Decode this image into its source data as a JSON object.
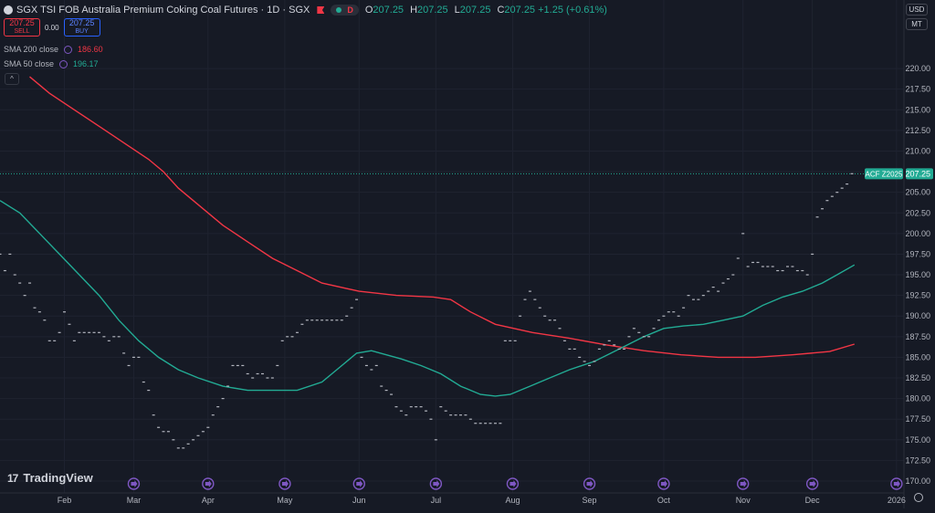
{
  "header": {
    "title": "SGX TSI FOB Australia Premium Coking Coal Futures · 1D · SGX",
    "interval_badge": "D",
    "ohlc": [
      {
        "k": "O",
        "v": "207.25"
      },
      {
        "k": "H",
        "v": "207.25"
      },
      {
        "k": "L",
        "v": "207.25"
      },
      {
        "k": "C",
        "v": "207.25 +1.25 (+0.61%)"
      }
    ]
  },
  "trade": {
    "sell_price": "207.25",
    "sell_label": "SELL",
    "spread": "0.00",
    "buy_price": "207.25",
    "buy_label": "BUY"
  },
  "indicators": [
    {
      "label": "SMA 200 close",
      "value": "186.60",
      "color": "#f23645"
    },
    {
      "label": "SMA 50 close",
      "value": "196.17",
      "color": "#22ab94"
    }
  ],
  "collapse_glyph": "^",
  "units": {
    "currency": "USD",
    "unit": "MT"
  },
  "logo_mark": "17",
  "logo_text": "TradingView",
  "chart_data": {
    "type": "line",
    "x_domain": [
      0,
      365
    ],
    "ylim": [
      170,
      222
    ],
    "y_ticks": [
      "170.00",
      "172.50",
      "175.00",
      "177.50",
      "180.00",
      "182.50",
      "185.00",
      "187.50",
      "190.00",
      "192.50",
      "195.00",
      "197.50",
      "200.00",
      "202.50",
      "205.00",
      "207.50",
      "210.00",
      "212.50",
      "215.00",
      "217.50",
      "220.00"
    ],
    "x_labels": [
      {
        "t": 26,
        "label": "Feb"
      },
      {
        "t": 54,
        "label": "Mar"
      },
      {
        "t": 84,
        "label": "Apr"
      },
      {
        "t": 115,
        "label": "May"
      },
      {
        "t": 145,
        "label": "Jun"
      },
      {
        "t": 176,
        "label": "Jul"
      },
      {
        "t": 207,
        "label": "Aug"
      },
      {
        "t": 238,
        "label": "Sep"
      },
      {
        "t": 268,
        "label": "Oct"
      },
      {
        "t": 300,
        "label": "Nov"
      },
      {
        "t": 328,
        "label": "Dec"
      },
      {
        "t": 362,
        "label": "2026"
      }
    ],
    "last_price": {
      "value": 207.25,
      "label": "207.25",
      "tag": "ACF Z2025"
    },
    "price_points": [
      [
        0,
        197.5
      ],
      [
        2,
        195.5
      ],
      [
        4,
        197.5
      ],
      [
        6,
        195
      ],
      [
        8,
        194
      ],
      [
        10,
        192.5
      ],
      [
        12,
        194
      ],
      [
        14,
        191
      ],
      [
        16,
        190.5
      ],
      [
        18,
        189.5
      ],
      [
        20,
        187
      ],
      [
        22,
        187
      ],
      [
        24,
        188
      ],
      [
        26,
        190.5
      ],
      [
        28,
        189
      ],
      [
        30,
        187
      ],
      [
        32,
        188
      ],
      [
        34,
        188
      ],
      [
        36,
        188
      ],
      [
        38,
        188
      ],
      [
        40,
        188
      ],
      [
        42,
        187.5
      ],
      [
        44,
        187
      ],
      [
        46,
        187.5
      ],
      [
        48,
        187.5
      ],
      [
        50,
        185.5
      ],
      [
        52,
        184
      ],
      [
        54,
        185
      ],
      [
        56,
        185
      ],
      [
        58,
        182
      ],
      [
        60,
        181
      ],
      [
        62,
        178
      ],
      [
        64,
        176.5
      ],
      [
        66,
        176
      ],
      [
        68,
        176
      ],
      [
        70,
        175
      ],
      [
        72,
        174
      ],
      [
        74,
        174
      ],
      [
        76,
        174.5
      ],
      [
        78,
        175
      ],
      [
        80,
        175.5
      ],
      [
        82,
        176
      ],
      [
        84,
        176.5
      ],
      [
        86,
        178
      ],
      [
        88,
        179
      ],
      [
        90,
        180
      ],
      [
        92,
        181.5
      ],
      [
        94,
        184
      ],
      [
        96,
        184
      ],
      [
        98,
        184
      ],
      [
        100,
        183
      ],
      [
        102,
        182.5
      ],
      [
        104,
        183
      ],
      [
        106,
        183
      ],
      [
        108,
        182.5
      ],
      [
        110,
        182.5
      ],
      [
        112,
        184
      ],
      [
        114,
        187
      ],
      [
        116,
        187.5
      ],
      [
        118,
        187.5
      ],
      [
        120,
        188
      ],
      [
        122,
        189
      ],
      [
        124,
        189.5
      ],
      [
        126,
        189.5
      ],
      [
        128,
        189.5
      ],
      [
        130,
        189.5
      ],
      [
        132,
        189.5
      ],
      [
        134,
        189.5
      ],
      [
        136,
        189.5
      ],
      [
        138,
        189.5
      ],
      [
        140,
        190
      ],
      [
        142,
        191
      ],
      [
        144,
        192
      ],
      [
        146,
        185
      ],
      [
        148,
        184
      ],
      [
        150,
        183.5
      ],
      [
        152,
        184
      ],
      [
        154,
        181.5
      ],
      [
        156,
        181
      ],
      [
        158,
        180.5
      ],
      [
        160,
        179
      ],
      [
        162,
        178.5
      ],
      [
        164,
        178
      ],
      [
        166,
        179
      ],
      [
        168,
        179
      ],
      [
        170,
        179
      ],
      [
        172,
        178.5
      ],
      [
        174,
        177.5
      ],
      [
        176,
        175
      ],
      [
        178,
        179
      ],
      [
        180,
        178.5
      ],
      [
        182,
        178
      ],
      [
        184,
        178
      ],
      [
        186,
        178
      ],
      [
        188,
        178
      ],
      [
        190,
        177.5
      ],
      [
        192,
        177
      ],
      [
        194,
        177
      ],
      [
        196,
        177
      ],
      [
        198,
        177
      ],
      [
        200,
        177
      ],
      [
        202,
        177
      ],
      [
        204,
        187
      ],
      [
        206,
        187
      ],
      [
        208,
        187
      ],
      [
        210,
        190
      ],
      [
        212,
        192
      ],
      [
        214,
        193
      ],
      [
        216,
        192
      ],
      [
        218,
        191
      ],
      [
        220,
        190
      ],
      [
        222,
        189.5
      ],
      [
        224,
        189.5
      ],
      [
        226,
        188.5
      ],
      [
        228,
        187
      ],
      [
        230,
        186
      ],
      [
        232,
        186
      ],
      [
        234,
        185
      ],
      [
        236,
        184.5
      ],
      [
        238,
        184
      ],
      [
        240,
        184.5
      ],
      [
        242,
        186
      ],
      [
        244,
        186.5
      ],
      [
        246,
        187
      ],
      [
        248,
        186.5
      ],
      [
        250,
        186
      ],
      [
        252,
        186
      ],
      [
        254,
        187.5
      ],
      [
        256,
        188.5
      ],
      [
        258,
        188
      ],
      [
        260,
        187.5
      ],
      [
        262,
        187.5
      ],
      [
        264,
        188.5
      ],
      [
        266,
        189.5
      ],
      [
        268,
        190
      ],
      [
        270,
        190.5
      ],
      [
        272,
        190.5
      ],
      [
        274,
        190
      ],
      [
        276,
        191
      ],
      [
        278,
        192.5
      ],
      [
        280,
        192
      ],
      [
        282,
        192
      ],
      [
        284,
        192.5
      ],
      [
        286,
        193
      ],
      [
        288,
        193.5
      ],
      [
        290,
        193
      ],
      [
        292,
        194
      ],
      [
        294,
        194.5
      ],
      [
        296,
        195
      ],
      [
        298,
        197
      ],
      [
        300,
        200
      ],
      [
        302,
        196
      ],
      [
        304,
        196.5
      ],
      [
        306,
        196.5
      ],
      [
        308,
        196
      ],
      [
        310,
        196
      ],
      [
        312,
        196
      ],
      [
        314,
        195.5
      ],
      [
        316,
        195.5
      ],
      [
        318,
        196
      ],
      [
        320,
        196
      ],
      [
        322,
        195.5
      ],
      [
        324,
        195.5
      ],
      [
        326,
        195
      ],
      [
        328,
        197.5
      ],
      [
        330,
        202
      ],
      [
        332,
        203
      ],
      [
        334,
        204
      ],
      [
        336,
        204.5
      ],
      [
        338,
        205
      ],
      [
        340,
        205.5
      ],
      [
        342,
        206
      ],
      [
        344,
        207.25
      ]
    ],
    "series": [
      {
        "name": "SMA 200 close",
        "color": "#f23645",
        "points": [
          [
            12,
            219
          ],
          [
            20,
            217
          ],
          [
            30,
            215
          ],
          [
            40,
            213
          ],
          [
            50,
            211
          ],
          [
            60,
            209
          ],
          [
            66,
            207.5
          ],
          [
            72,
            205.5
          ],
          [
            80,
            203.5
          ],
          [
            90,
            201
          ],
          [
            100,
            199
          ],
          [
            110,
            197
          ],
          [
            120,
            195.5
          ],
          [
            130,
            194
          ],
          [
            145,
            193
          ],
          [
            160,
            192.5
          ],
          [
            175,
            192.3
          ],
          [
            182,
            192
          ],
          [
            190,
            190.5
          ],
          [
            200,
            189
          ],
          [
            215,
            188
          ],
          [
            230,
            187.3
          ],
          [
            245,
            186.5
          ],
          [
            260,
            185.8
          ],
          [
            275,
            185.3
          ],
          [
            290,
            185
          ],
          [
            305,
            185
          ],
          [
            320,
            185.3
          ],
          [
            335,
            185.7
          ],
          [
            345,
            186.6
          ]
        ]
      },
      {
        "name": "SMA 50 close",
        "color": "#22ab94",
        "points": [
          [
            0,
            204
          ],
          [
            8,
            202.5
          ],
          [
            16,
            200
          ],
          [
            24,
            197.5
          ],
          [
            32,
            195
          ],
          [
            40,
            192.5
          ],
          [
            48,
            189.5
          ],
          [
            56,
            187
          ],
          [
            64,
            185
          ],
          [
            72,
            183.5
          ],
          [
            80,
            182.5
          ],
          [
            90,
            181.5
          ],
          [
            100,
            181
          ],
          [
            110,
            181
          ],
          [
            120,
            181
          ],
          [
            130,
            182
          ],
          [
            138,
            184
          ],
          [
            144,
            185.5
          ],
          [
            150,
            185.8
          ],
          [
            156,
            185.3
          ],
          [
            162,
            184.8
          ],
          [
            170,
            184
          ],
          [
            178,
            183
          ],
          [
            186,
            181.5
          ],
          [
            194,
            180.5
          ],
          [
            200,
            180.3
          ],
          [
            206,
            180.5
          ],
          [
            214,
            181.5
          ],
          [
            222,
            182.5
          ],
          [
            230,
            183.5
          ],
          [
            240,
            184.5
          ],
          [
            250,
            186
          ],
          [
            260,
            187.5
          ],
          [
            268,
            188.5
          ],
          [
            276,
            188.8
          ],
          [
            284,
            189
          ],
          [
            292,
            189.5
          ],
          [
            300,
            190
          ],
          [
            308,
            191.3
          ],
          [
            316,
            192.3
          ],
          [
            324,
            193
          ],
          [
            332,
            194
          ],
          [
            338,
            195
          ],
          [
            345,
            196.2
          ]
        ]
      }
    ],
    "event_markers": [
      54,
      84,
      115,
      145,
      176,
      207,
      238,
      268,
      300,
      328,
      362
    ]
  }
}
